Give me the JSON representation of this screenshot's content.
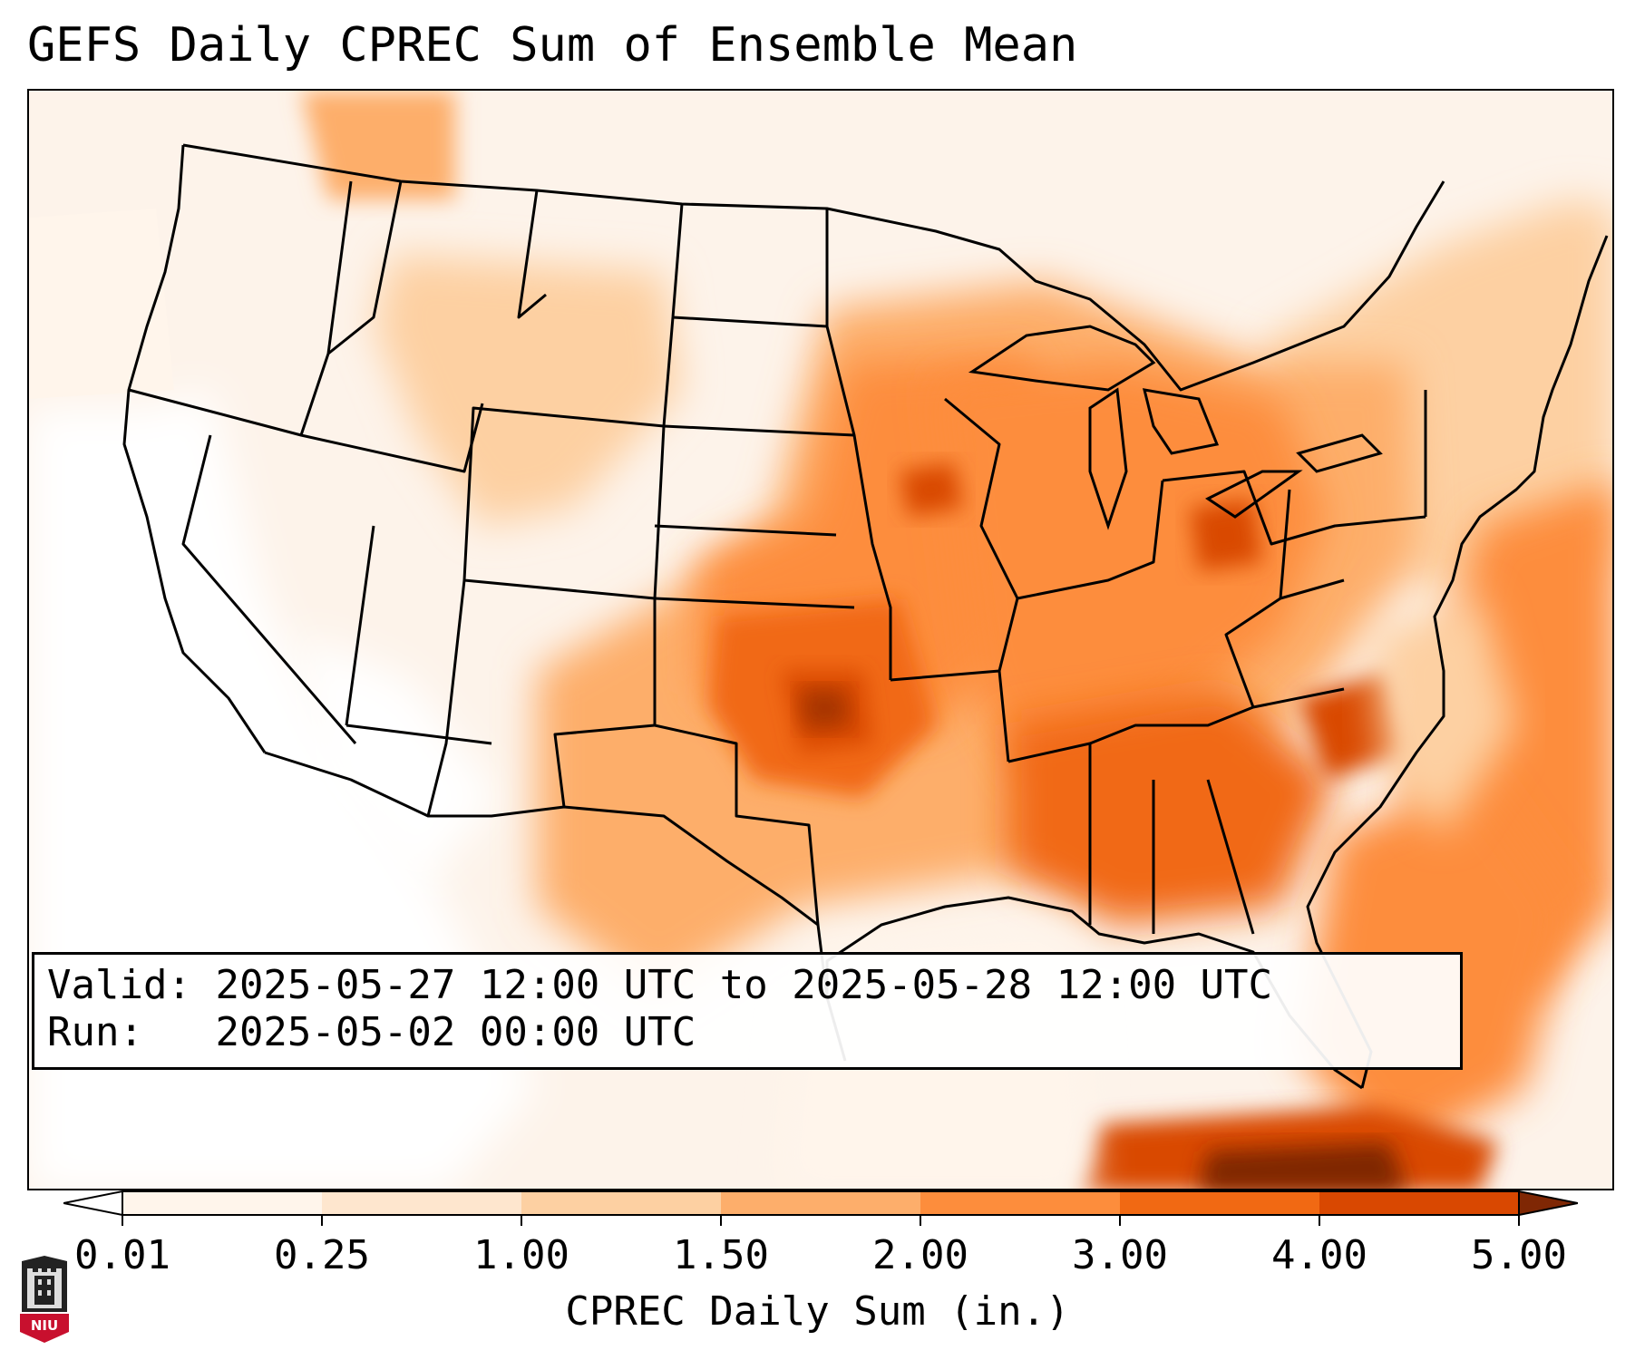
{
  "title": "GEFS Daily CPREC Sum of Ensemble Mean",
  "info": {
    "valid_label": "Valid:",
    "valid_value": "2025-05-27 12:00 UTC to 2025-05-28 12:00 UTC",
    "run_label": "Run:",
    "run_value": "2025-05-02 00:00 UTC"
  },
  "colorbar": {
    "label": "CPREC Daily Sum (in.)",
    "ticks": [
      "0.01",
      "0.25",
      "1.00",
      "1.50",
      "2.00",
      "3.00",
      "4.00",
      "5.00"
    ],
    "colors": [
      "#fff5eb",
      "#fee6ce",
      "#fdd0a2",
      "#fdae6b",
      "#fd8d3c",
      "#f16913",
      "#d94801",
      "#a63603"
    ],
    "under_color": "#ffffff",
    "over_color": "#7f2704",
    "extend": "both"
  },
  "logo": {
    "text": "NIU",
    "colors": {
      "shield": "#c8102e",
      "tower": "#222222"
    }
  }
}
